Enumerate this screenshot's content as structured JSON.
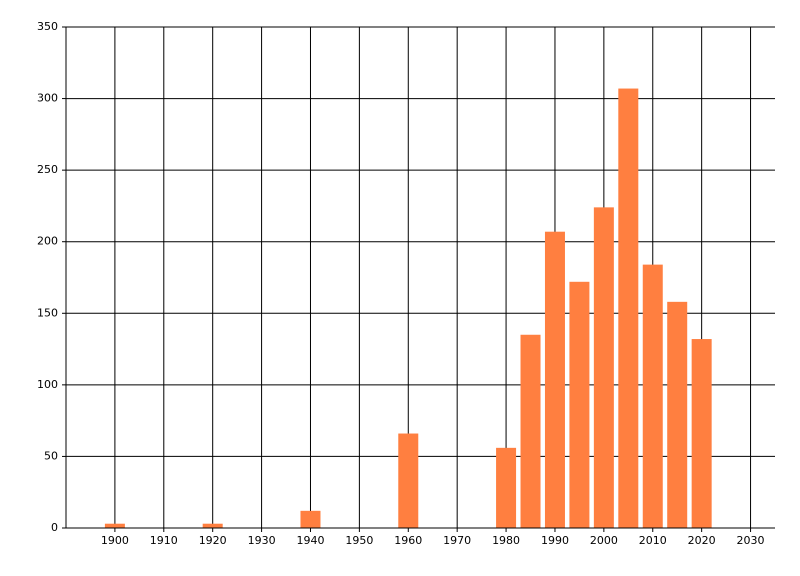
{
  "chart_data": {
    "type": "bar",
    "x": [
      1900,
      1920,
      1940,
      1960,
      1980,
      1985,
      1990,
      1995,
      2000,
      2005,
      2010,
      2015,
      2020
    ],
    "values": [
      3,
      3,
      12,
      66,
      56,
      135,
      207,
      172,
      224,
      307,
      184,
      158,
      132
    ],
    "color": "#ff7f40",
    "xlim": [
      1890,
      2035
    ],
    "xticks": [
      1900,
      1910,
      1920,
      1930,
      1940,
      1950,
      1960,
      1970,
      1980,
      1990,
      2000,
      2010,
      2020,
      2030
    ],
    "ylim": [
      0,
      350
    ],
    "yticks": [
      0,
      50,
      100,
      150,
      200,
      250,
      300,
      350
    ],
    "grid": true
  }
}
